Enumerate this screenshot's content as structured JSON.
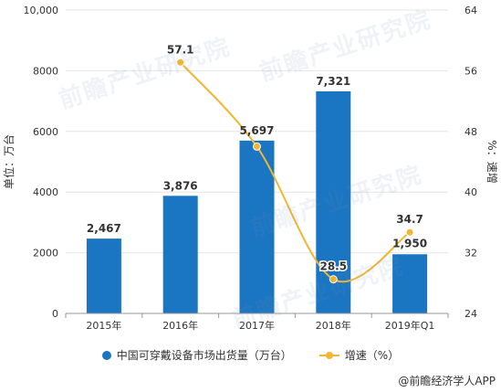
{
  "chart_data": {
    "type": "bar+line",
    "categories": [
      "2015年",
      "2016年",
      "2017年",
      "2018年",
      "2019年Q1"
    ],
    "series": [
      {
        "name": "中国可穿戴设备市场出货量（万台）",
        "type": "bar",
        "axis": "left",
        "values": [
          2467,
          3876,
          5697,
          7321,
          1950
        ],
        "labels": [
          "2,467",
          "3,876",
          "5,697",
          "7,321",
          "1,950"
        ]
      },
      {
        "name": "增速（%）",
        "type": "line",
        "axis": "right",
        "values": [
          null,
          57.1,
          46.0,
          28.5,
          34.7
        ],
        "labels": [
          "",
          "57.1",
          "",
          "28.5",
          "34.7"
        ]
      }
    ],
    "ylabel": "单位：万台",
    "y2label": "%：速增",
    "ylim": [
      0,
      10000
    ],
    "y2lim": [
      24,
      64
    ],
    "yticks": [
      "0",
      "2000",
      "4000",
      "6000",
      "8000",
      "10,000"
    ],
    "y2ticks": [
      "24",
      "32",
      "40",
      "48",
      "56",
      "64"
    ],
    "grid": true,
    "legend": "bottom"
  },
  "colors": {
    "bar": "#1a75c2",
    "line": "#f2b632",
    "grid": "#e6e6e6",
    "axis": "#999999",
    "text": "#333333"
  },
  "watermark": "前瞻产业研究院",
  "source": "@前瞻经济学人APP"
}
